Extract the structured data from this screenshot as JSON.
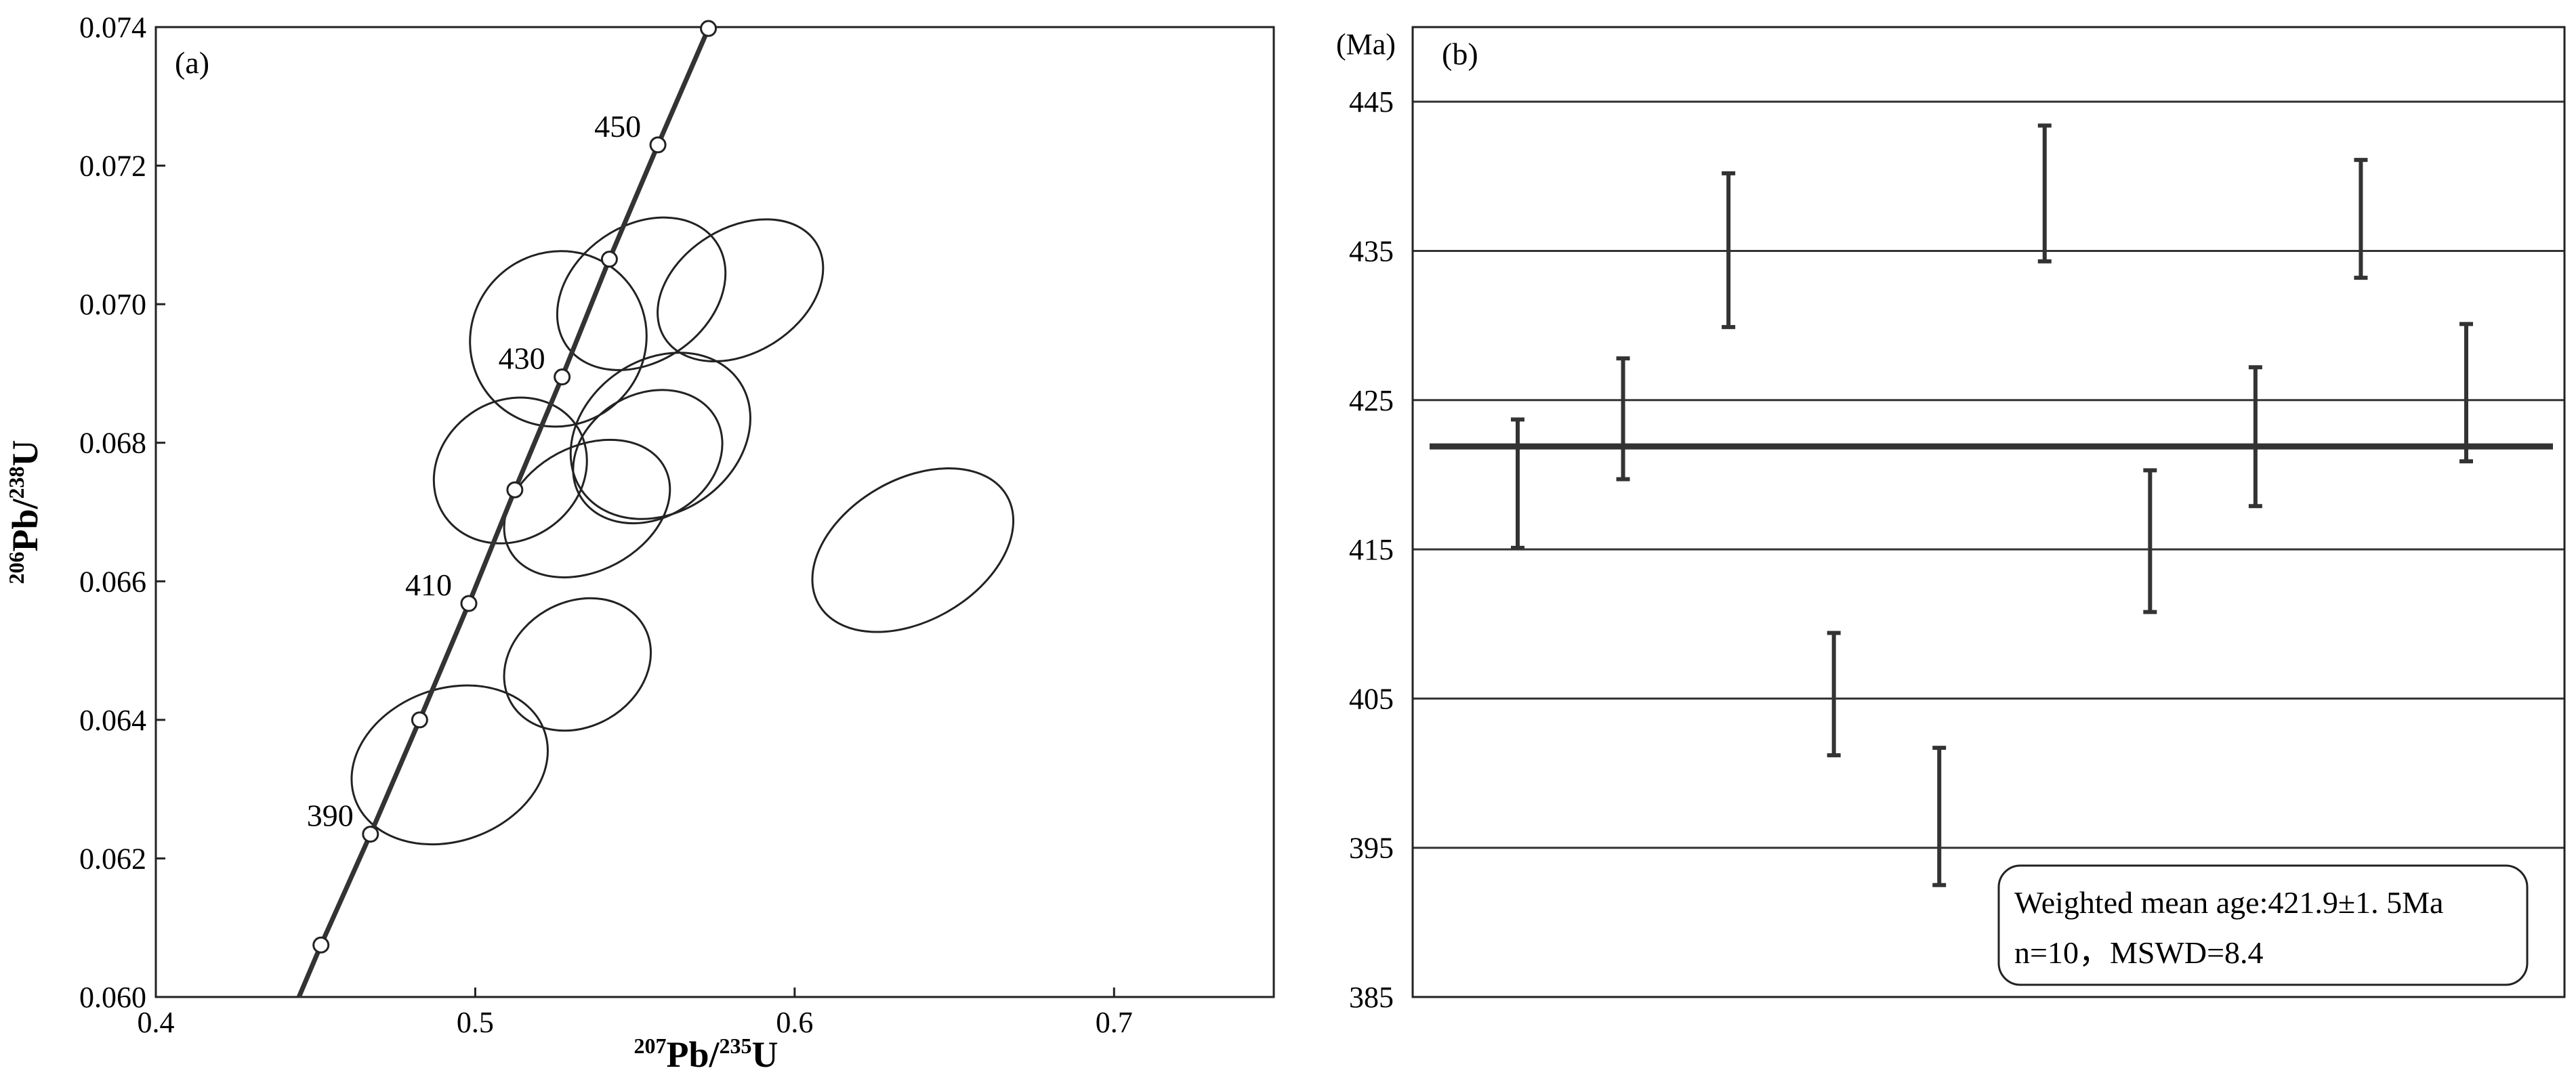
{
  "chart_data": [
    {
      "type": "scatter",
      "panel_label": "(a)",
      "xlabel": {
        "sup": "207",
        "base1": "Pb/",
        "sup2": "235",
        "base2": "U"
      },
      "ylabel": {
        "sup": "206",
        "base1": "Pb/",
        "sup2": "238",
        "base2": "U"
      },
      "xlim": [
        0.4,
        0.75
      ],
      "ylim": [
        0.06,
        0.074
      ],
      "x_ticks": [
        0.4,
        0.5,
        0.6,
        0.7
      ],
      "x_tick_labels": [
        "0.4",
        "0.5",
        "0.6",
        "0.7"
      ],
      "y_ticks": [
        0.06,
        0.062,
        0.064,
        0.066,
        0.068,
        0.07,
        0.072,
        0.074
      ],
      "y_tick_labels": [
        "0.060",
        "0.062",
        "0.064",
        "0.066",
        "0.068",
        "0.070",
        "0.072",
        "0.074"
      ],
      "concordia": [
        {
          "x": 0.4448,
          "y": 0.06
        },
        {
          "x": 0.4517,
          "y": 0.06075
        },
        {
          "x": 0.4672,
          "y": 0.06235
        },
        {
          "x": 0.4826,
          "y": 0.064
        },
        {
          "x": 0.498,
          "y": 0.06568
        },
        {
          "x": 0.5124,
          "y": 0.06732
        },
        {
          "x": 0.5272,
          "y": 0.06895
        },
        {
          "x": 0.542,
          "y": 0.07065
        },
        {
          "x": 0.5572,
          "y": 0.0723
        },
        {
          "x": 0.573,
          "y": 0.07398
        }
      ],
      "age_labels": [
        {
          "text": "390",
          "x": 0.4672,
          "y": 0.06235
        },
        {
          "text": "410",
          "x": 0.498,
          "y": 0.06568
        },
        {
          "text": "430",
          "x": 0.5272,
          "y": 0.06895
        },
        {
          "text": "450",
          "x": 0.5572,
          "y": 0.0723
        }
      ],
      "ellipses": [
        {
          "cx": 0.526,
          "cy": 0.0695,
          "rx": 0.028,
          "ry": 0.00125,
          "angle": -40
        },
        {
          "cx": 0.552,
          "cy": 0.07015,
          "rx": 0.0285,
          "ry": 0.00098,
          "angle": -35
        },
        {
          "cx": 0.583,
          "cy": 0.0702,
          "rx": 0.028,
          "ry": 0.0009,
          "angle": -32
        },
        {
          "cx": 0.511,
          "cy": 0.0676,
          "rx": 0.025,
          "ry": 0.001,
          "angle": -35
        },
        {
          "cx": 0.558,
          "cy": 0.0681,
          "rx": 0.03,
          "ry": 0.0011,
          "angle": -35
        },
        {
          "cx": 0.554,
          "cy": 0.0678,
          "rx": 0.0245,
          "ry": 0.0009,
          "angle": -30
        },
        {
          "cx": 0.535,
          "cy": 0.06705,
          "rx": 0.0275,
          "ry": 0.0009,
          "angle": -28
        },
        {
          "cx": 0.637,
          "cy": 0.06645,
          "rx": 0.034,
          "ry": 0.00102,
          "angle": -30
        },
        {
          "cx": 0.532,
          "cy": 0.0648,
          "rx": 0.024,
          "ry": 0.0009,
          "angle": -30
        },
        {
          "cx": 0.492,
          "cy": 0.06335,
          "rx": 0.0315,
          "ry": 0.0011,
          "angle": -20
        }
      ]
    },
    {
      "type": "error-bar",
      "panel_label": "(b)",
      "ylabel": "(Ma)",
      "ylim": [
        385,
        450
      ],
      "y_ticks": [
        385,
        395,
        405,
        415,
        425,
        435,
        445
      ],
      "y_tick_labels": [
        "385",
        "395",
        "405",
        "415",
        "425",
        "435",
        "445"
      ],
      "grid": true,
      "mean": 421.9,
      "points": [
        {
          "n": 1,
          "low": 415.1,
          "high": 423.7
        },
        {
          "n": 2,
          "low": 419.7,
          "high": 427.8
        },
        {
          "n": 3,
          "low": 429.9,
          "high": 440.2
        },
        {
          "n": 4,
          "low": 401.2,
          "high": 409.4
        },
        {
          "n": 5,
          "low": 392.5,
          "high": 401.7
        },
        {
          "n": 6,
          "low": 434.3,
          "high": 443.4
        },
        {
          "n": 7,
          "low": 410.8,
          "high": 420.3
        },
        {
          "n": 8,
          "low": 417.9,
          "high": 427.2
        },
        {
          "n": 9,
          "low": 433.2,
          "high": 441.1
        },
        {
          "n": 10,
          "low": 420.9,
          "high": 430.1
        }
      ],
      "legend": {
        "line1": "Weighted mean age:421.9±1. 5Ma",
        "line2": "n=10，MSWD=8.4"
      }
    }
  ]
}
